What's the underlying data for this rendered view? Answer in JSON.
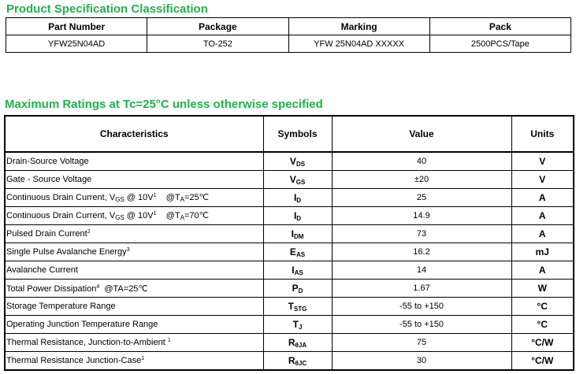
{
  "section1": {
    "title": "Product Specification Classification",
    "headers": [
      "Part Number",
      "Package",
      "Marking",
      "Pack"
    ],
    "row": [
      "YFW25N04AD",
      "TO-252",
      "YFW 25N04AD XXXXX",
      "2500PCS/Tape"
    ]
  },
  "section2": {
    "title": "Maximum Ratings at Tc=25°C unless otherwise specified",
    "headers": [
      "Characteristics",
      "Symbols",
      "Value",
      "Units"
    ],
    "rows": [
      {
        "char": "Drain-Source Voltage",
        "sym": "V",
        "sub": "DS",
        "value": "40",
        "unit": "V"
      },
      {
        "char": "Gate - Source Voltage",
        "sym": "V",
        "sub": "GS",
        "value": "±20",
        "unit": "V"
      },
      {
        "char": "Continuous Drain Current, V",
        "char_sub": "GS",
        "char_mid": " @ 10V",
        "char_sup": "1",
        "char_tail": "    @T",
        "char_sub2": "A",
        "char_end": "=25℃",
        "sym": "I",
        "sub": "D",
        "value": "25",
        "unit": "A"
      },
      {
        "char": "Continuous Drain Current, V",
        "char_sub": "GS",
        "char_mid": " @ 10V",
        "char_sup": "1",
        "char_tail": "    @T",
        "char_sub2": "A",
        "char_end": "=70℃",
        "sym": "I",
        "sub": "D",
        "value": "14.9",
        "unit": "A"
      },
      {
        "char": "Pulsed Drain Current",
        "char_sup": "2",
        "sym": "I",
        "sub": "DM",
        "value": "73",
        "unit": "A"
      },
      {
        "char": "Single Pulse Avalanche Energy",
        "char_sup": "3",
        "sym": "E",
        "sub": "AS",
        "value": "16.2",
        "unit": "mJ"
      },
      {
        "char": "Avalanche Current",
        "sym": "I",
        "sub": "AS",
        "value": "14",
        "unit": "A"
      },
      {
        "char": "Total Power Dissipation",
        "char_sup": "4",
        "char_tail": "  @TA=25℃",
        "sym": "P",
        "sub": "D",
        "value": "1.67",
        "unit": "W"
      },
      {
        "char": "Storage Temperature Range",
        "sym": "T",
        "sub": "STG",
        "value": "-55 to +150",
        "unit": "°C"
      },
      {
        "char": "Operating Junction Temperature Range",
        "sym": "T",
        "sub": "J",
        "value": "-55 to +150",
        "unit": "°C"
      },
      {
        "char": "Thermal Resistance, Junction-to-Ambient ",
        "char_sup": "1",
        "sym": "R",
        "sub": "θJA",
        "value": "75",
        "unit": "°C/W"
      },
      {
        "char": "Thermal Resistance Junction-Case",
        "char_sup": "1",
        "sym": "R",
        "sub": "θJC",
        "value": "30",
        "unit": "°C/W"
      }
    ]
  },
  "colors": {
    "heading": "#1db34c"
  }
}
